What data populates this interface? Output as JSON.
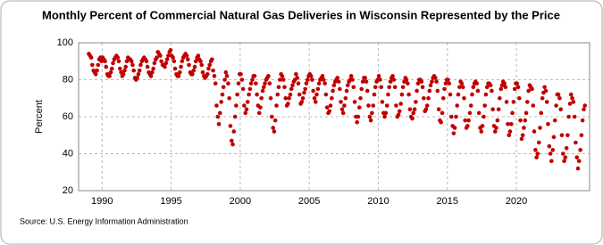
{
  "chart_data": {
    "type": "scatter",
    "title": "Monthly Percent of Commercial Natural Gas Deliveries in Wisconsin Represented by the Price",
    "y_label": "Percent",
    "source": "Source: U.S. Energy Information Administration",
    "color": "#c00000",
    "grid": true,
    "xlim": [
      1988.3,
      2025.3
    ],
    "xticks": [
      1990,
      1995,
      2000,
      2005,
      2010,
      2015,
      2020
    ],
    "ylim": [
      20,
      100
    ],
    "yticks": [
      20,
      40,
      60,
      80,
      100
    ],
    "x": [
      1989.04,
      1989.13,
      1989.21,
      1989.29,
      1989.38,
      1989.46,
      1989.54,
      1989.63,
      1989.71,
      1989.79,
      1989.88,
      1989.96,
      1990.04,
      1990.13,
      1990.21,
      1990.29,
      1990.38,
      1990.46,
      1990.54,
      1990.63,
      1990.71,
      1990.79,
      1990.88,
      1990.96,
      1991.04,
      1991.13,
      1991.21,
      1991.29,
      1991.38,
      1991.46,
      1991.54,
      1991.63,
      1991.71,
      1991.79,
      1991.88,
      1991.96,
      1992.04,
      1992.13,
      1992.21,
      1992.29,
      1992.38,
      1992.46,
      1992.54,
      1992.63,
      1992.71,
      1992.79,
      1992.88,
      1992.96,
      1993.04,
      1993.13,
      1993.21,
      1993.29,
      1993.38,
      1993.46,
      1993.54,
      1993.63,
      1993.71,
      1993.79,
      1993.88,
      1993.96,
      1994.04,
      1994.13,
      1994.21,
      1994.29,
      1994.38,
      1994.46,
      1994.54,
      1994.63,
      1994.71,
      1994.79,
      1994.88,
      1994.96,
      1995.04,
      1995.13,
      1995.21,
      1995.29,
      1995.38,
      1995.46,
      1995.54,
      1995.63,
      1995.71,
      1995.79,
      1995.88,
      1995.96,
      1996.04,
      1996.13,
      1996.21,
      1996.29,
      1996.38,
      1996.46,
      1996.54,
      1996.63,
      1996.71,
      1996.79,
      1996.88,
      1996.96,
      1997.04,
      1997.13,
      1997.21,
      1997.29,
      1997.38,
      1997.46,
      1997.54,
      1997.63,
      1997.71,
      1997.79,
      1997.88,
      1997.96,
      1998.04,
      1998.13,
      1998.21,
      1998.29,
      1998.38,
      1998.46,
      1998.54,
      1998.63,
      1998.71,
      1998.79,
      1998.88,
      1998.96,
      1999.04,
      1999.13,
      1999.21,
      1999.29,
      1999.38,
      1999.46,
      1999.54,
      1999.63,
      1999.71,
      1999.79,
      1999.88,
      1999.96,
      2000.04,
      2000.13,
      2000.21,
      2000.29,
      2000.38,
      2000.46,
      2000.54,
      2000.63,
      2000.71,
      2000.79,
      2000.88,
      2000.96,
      2001.04,
      2001.13,
      2001.21,
      2001.29,
      2001.38,
      2001.46,
      2001.54,
      2001.63,
      2001.71,
      2001.79,
      2001.88,
      2001.96,
      2002.04,
      2002.13,
      2002.21,
      2002.29,
      2002.38,
      2002.46,
      2002.54,
      2002.63,
      2002.71,
      2002.79,
      2002.88,
      2002.96,
      2003.04,
      2003.13,
      2003.21,
      2003.29,
      2003.38,
      2003.46,
      2003.54,
      2003.63,
      2003.71,
      2003.79,
      2003.88,
      2003.96,
      2004.04,
      2004.13,
      2004.21,
      2004.29,
      2004.38,
      2004.46,
      2004.54,
      2004.63,
      2004.71,
      2004.79,
      2004.88,
      2004.96,
      2005.04,
      2005.13,
      2005.21,
      2005.29,
      2005.38,
      2005.46,
      2005.54,
      2005.63,
      2005.71,
      2005.79,
      2005.88,
      2005.96,
      2006.04,
      2006.13,
      2006.21,
      2006.29,
      2006.38,
      2006.46,
      2006.54,
      2006.63,
      2006.71,
      2006.79,
      2006.88,
      2006.96,
      2007.04,
      2007.13,
      2007.21,
      2007.29,
      2007.38,
      2007.46,
      2007.54,
      2007.63,
      2007.71,
      2007.79,
      2007.88,
      2007.96,
      2008.04,
      2008.13,
      2008.21,
      2008.29,
      2008.38,
      2008.46,
      2008.54,
      2008.63,
      2008.71,
      2008.79,
      2008.88,
      2008.96,
      2009.04,
      2009.13,
      2009.21,
      2009.29,
      2009.38,
      2009.46,
      2009.54,
      2009.63,
      2009.71,
      2009.79,
      2009.88,
      2009.96,
      2010.04,
      2010.13,
      2010.21,
      2010.29,
      2010.38,
      2010.46,
      2010.54,
      2010.63,
      2010.71,
      2010.79,
      2010.88,
      2010.96,
      2011.04,
      2011.13,
      2011.21,
      2011.29,
      2011.38,
      2011.46,
      2011.54,
      2011.63,
      2011.71,
      2011.79,
      2011.88,
      2011.96,
      2012.04,
      2012.13,
      2012.21,
      2012.29,
      2012.38,
      2012.46,
      2012.54,
      2012.63,
      2012.71,
      2012.79,
      2012.88,
      2012.96,
      2013.04,
      2013.13,
      2013.21,
      2013.29,
      2013.38,
      2013.46,
      2013.54,
      2013.63,
      2013.71,
      2013.79,
      2013.88,
      2013.96,
      2014.04,
      2014.13,
      2014.21,
      2014.29,
      2014.38,
      2014.46,
      2014.54,
      2014.63,
      2014.71,
      2014.79,
      2014.88,
      2014.96,
      2015.04,
      2015.13,
      2015.21,
      2015.29,
      2015.38,
      2015.46,
      2015.54,
      2015.63,
      2015.71,
      2015.79,
      2015.88,
      2015.96,
      2016.04,
      2016.13,
      2016.21,
      2016.29,
      2016.38,
      2016.46,
      2016.54,
      2016.63,
      2016.71,
      2016.79,
      2016.88,
      2016.96,
      2017.04,
      2017.13,
      2017.21,
      2017.29,
      2017.38,
      2017.46,
      2017.54,
      2017.63,
      2017.71,
      2017.79,
      2017.88,
      2017.96,
      2018.04,
      2018.13,
      2018.21,
      2018.29,
      2018.38,
      2018.46,
      2018.54,
      2018.63,
      2018.71,
      2018.79,
      2018.88,
      2018.96,
      2019.04,
      2019.13,
      2019.21,
      2019.29,
      2019.38,
      2019.46,
      2019.54,
      2019.63,
      2019.71,
      2019.79,
      2019.88,
      2019.96,
      2020.04,
      2020.13,
      2020.21,
      2020.29,
      2020.38,
      2020.46,
      2020.54,
      2020.63,
      2020.71,
      2020.79,
      2020.88,
      2020.96,
      2021.04,
      2021.13,
      2021.21,
      2021.29,
      2021.38,
      2021.46,
      2021.54,
      2021.63,
      2021.71,
      2021.79,
      2021.88,
      2021.96,
      2022.04,
      2022.13,
      2022.21,
      2022.29,
      2022.38,
      2022.46,
      2022.54,
      2022.63,
      2022.71,
      2022.79,
      2022.88,
      2022.96,
      2023.04,
      2023.13,
      2023.21,
      2023.29,
      2023.38,
      2023.46,
      2023.54,
      2023.63,
      2023.71,
      2023.79,
      2023.88,
      2023.96,
      2024.04,
      2024.13,
      2024.21,
      2024.29,
      2024.38,
      2024.46,
      2024.54,
      2024.63,
      2024.71,
      2024.79,
      2024.88,
      2024.96
    ],
    "values": [
      94,
      93,
      92,
      88,
      85,
      84,
      83,
      85,
      88,
      91,
      92,
      90,
      92,
      91,
      90,
      87,
      83,
      82,
      82,
      84,
      86,
      89,
      91,
      92,
      93,
      92,
      90,
      86,
      84,
      82,
      83,
      85,
      87,
      90,
      92,
      91,
      91,
      90,
      88,
      85,
      81,
      80,
      81,
      83,
      85,
      88,
      90,
      91,
      92,
      91,
      90,
      87,
      84,
      83,
      82,
      84,
      86,
      89,
      91,
      92,
      95,
      94,
      93,
      90,
      88,
      88,
      87,
      89,
      91,
      93,
      95,
      96,
      93,
      92,
      90,
      86,
      83,
      82,
      82,
      84,
      87,
      90,
      92,
      93,
      94,
      93,
      91,
      88,
      84,
      83,
      83,
      85,
      87,
      90,
      92,
      93,
      91,
      90,
      88,
      84,
      82,
      81,
      82,
      83,
      86,
      88,
      90,
      91,
      85,
      82,
      78,
      66,
      60,
      56,
      62,
      68,
      72,
      76,
      80,
      84,
      82,
      78,
      70,
      55,
      47,
      45,
      52,
      60,
      66,
      72,
      78,
      83,
      83,
      80,
      75,
      66,
      62,
      64,
      68,
      72,
      75,
      78,
      80,
      82,
      82,
      78,
      72,
      66,
      62,
      65,
      70,
      74,
      76,
      78,
      80,
      81,
      82,
      78,
      70,
      60,
      54,
      52,
      58,
      66,
      72,
      76,
      80,
      83,
      82,
      80,
      76,
      70,
      66,
      67,
      70,
      72,
      75,
      77,
      79,
      80,
      83,
      81,
      78,
      72,
      67,
      68,
      70,
      73,
      75,
      78,
      80,
      82,
      83,
      82,
      80,
      74,
      70,
      68,
      72,
      75,
      78,
      80,
      81,
      82,
      80,
      78,
      72,
      65,
      62,
      63,
      66,
      70,
      74,
      77,
      79,
      80,
      81,
      79,
      75,
      68,
      64,
      62,
      66,
      70,
      74,
      77,
      79,
      80,
      82,
      80,
      76,
      68,
      60,
      57,
      60,
      65,
      70,
      75,
      79,
      81,
      81,
      79,
      74,
      66,
      60,
      58,
      62,
      66,
      72,
      76,
      79,
      80,
      82,
      80,
      76,
      68,
      62,
      60,
      62,
      66,
      72,
      76,
      79,
      81,
      82,
      80,
      76,
      66,
      60,
      61,
      63,
      67,
      72,
      76,
      79,
      81,
      80,
      78,
      72,
      64,
      60,
      59,
      62,
      64,
      68,
      74,
      78,
      80,
      80,
      79,
      76,
      70,
      63,
      64,
      66,
      70,
      74,
      77,
      79,
      81,
      82,
      81,
      79,
      74,
      64,
      58,
      57,
      62,
      70,
      75,
      78,
      80,
      80,
      78,
      72,
      60,
      55,
      51,
      54,
      60,
      66,
      72,
      76,
      79,
      78,
      76,
      70,
      58,
      54,
      55,
      58,
      62,
      66,
      72,
      76,
      78,
      79,
      78,
      74,
      62,
      54,
      52,
      55,
      60,
      66,
      72,
      76,
      78,
      78,
      77,
      74,
      64,
      55,
      52,
      54,
      58,
      64,
      70,
      75,
      77,
      79,
      78,
      76,
      68,
      56,
      50,
      52,
      56,
      62,
      68,
      75,
      78,
      78,
      76,
      70,
      58,
      48,
      50,
      54,
      58,
      62,
      68,
      74,
      77,
      76,
      75,
      66,
      52,
      42,
      38,
      40,
      46,
      54,
      62,
      70,
      73,
      76,
      74,
      68,
      56,
      44,
      40,
      36,
      42,
      49,
      58,
      66,
      72,
      72,
      70,
      64,
      50,
      40,
      36,
      38,
      43,
      50,
      60,
      67,
      72,
      70,
      68,
      60,
      46,
      38,
      32,
      36,
      42,
      50,
      58,
      64,
      66
    ]
  }
}
